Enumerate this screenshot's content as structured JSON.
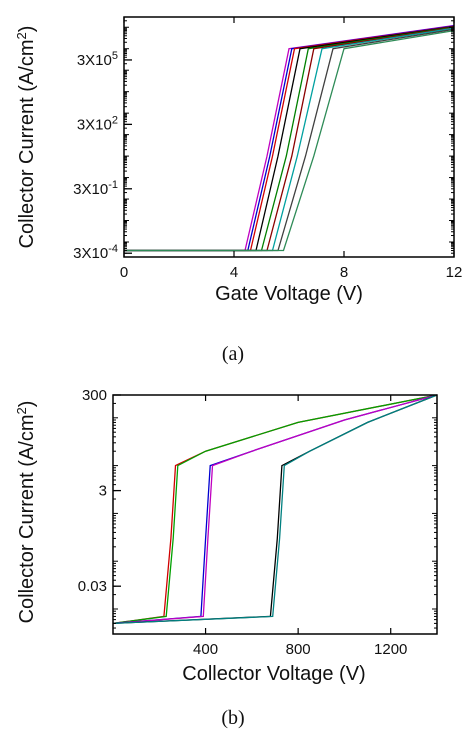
{
  "chart_data": [
    {
      "type": "line",
      "xlabel": "Gate Voltage (V)",
      "ylabel": "Collector Current (A/cm",
      "ylabel_superscript": "2",
      "ylabel_suffix": ")",
      "yscale": "log",
      "xlim": [
        0,
        12
      ],
      "ylim": [
        0.0002,
        30000000
      ],
      "xticks": [
        0,
        4,
        8,
        12
      ],
      "xtick_labels": [
        "0",
        "4",
        "8",
        "12"
      ],
      "yticks": [
        {
          "value": 0.0003,
          "base": "3X10",
          "exp": "-4"
        },
        {
          "value": 0.3,
          "base": "3X10",
          "exp": "-1"
        },
        {
          "value": 300,
          "base": "3X10",
          "exp": "2"
        },
        {
          "value": 300000,
          "base": "3X10",
          "exp": "5"
        }
      ],
      "grid": false,
      "series": [
        {
          "color": "#c000c0",
          "values": [
            {
              "x": 0,
              "y": 0.0004
            },
            {
              "x": 4.4,
              "y": 0.0004
            },
            {
              "x": 5.2,
              "y": 10
            },
            {
              "x": 6.0,
              "y": 1000000
            },
            {
              "x": 12,
              "y": 12000000
            }
          ]
        },
        {
          "color": "#0000d0",
          "values": [
            {
              "x": 0,
              "y": 0.0004
            },
            {
              "x": 4.5,
              "y": 0.0004
            },
            {
              "x": 5.3,
              "y": 10
            },
            {
              "x": 6.1,
              "y": 1000000
            },
            {
              "x": 12,
              "y": 11500000
            }
          ]
        },
        {
          "color": "#d00000",
          "values": [
            {
              "x": 0,
              "y": 0.0004
            },
            {
              "x": 4.6,
              "y": 0.0004
            },
            {
              "x": 5.4,
              "y": 10
            },
            {
              "x": 6.2,
              "y": 1000000
            },
            {
              "x": 12,
              "y": 11000000
            }
          ]
        },
        {
          "color": "#000000",
          "values": [
            {
              "x": 0,
              "y": 0.0004
            },
            {
              "x": 4.8,
              "y": 0.0004
            },
            {
              "x": 5.6,
              "y": 10
            },
            {
              "x": 6.4,
              "y": 1000000
            },
            {
              "x": 12,
              "y": 10500000
            }
          ]
        },
        {
          "color": "#008000",
          "values": [
            {
              "x": 0,
              "y": 0.0004
            },
            {
              "x": 5.0,
              "y": 0.0004
            },
            {
              "x": 5.9,
              "y": 10
            },
            {
              "x": 6.7,
              "y": 1000000
            },
            {
              "x": 12,
              "y": 10000000
            }
          ]
        },
        {
          "color": "#8b0000",
          "values": [
            {
              "x": 0,
              "y": 0.0004
            },
            {
              "x": 5.2,
              "y": 0.0004
            },
            {
              "x": 6.1,
              "y": 10
            },
            {
              "x": 6.9,
              "y": 1000000
            },
            {
              "x": 12,
              "y": 9500000
            }
          ]
        },
        {
          "color": "#00a0a0",
          "values": [
            {
              "x": 0,
              "y": 0.0004
            },
            {
              "x": 5.4,
              "y": 0.0004
            },
            {
              "x": 6.3,
              "y": 10
            },
            {
              "x": 7.2,
              "y": 1000000
            },
            {
              "x": 12,
              "y": 9000000
            }
          ]
        },
        {
          "color": "#404040",
          "values": [
            {
              "x": 0,
              "y": 0.0004
            },
            {
              "x": 5.6,
              "y": 0.0004
            },
            {
              "x": 6.6,
              "y": 10
            },
            {
              "x": 7.6,
              "y": 1000000
            },
            {
              "x": 12,
              "y": 8000000
            }
          ]
        },
        {
          "color": "#2e8b57",
          "values": [
            {
              "x": 0,
              "y": 0.0004
            },
            {
              "x": 5.8,
              "y": 0.0004
            },
            {
              "x": 6.9,
              "y": 10
            },
            {
              "x": 8.0,
              "y": 1000000
            },
            {
              "x": 12,
              "y": 7000000
            }
          ]
        }
      ]
    },
    {
      "type": "line",
      "xlabel": "Collector Voltage (V)",
      "ylabel": "Collector Current (A/cm",
      "ylabel_superscript": "2",
      "ylabel_suffix": ")",
      "yscale": "log",
      "xlim": [
        0,
        1400
      ],
      "ylim": [
        0.003,
        300
      ],
      "xticks": [
        400,
        800,
        1200
      ],
      "xtick_labels": [
        "400",
        "800",
        "1200"
      ],
      "yticks": [
        {
          "value": 300,
          "label": "300"
        },
        {
          "value": 3,
          "label": "3"
        },
        {
          "value": 0.03,
          "label": "0.03"
        }
      ],
      "grid": false,
      "series": [
        {
          "color": "#d00000",
          "values": [
            {
              "x": 0,
              "y": 0.005
            },
            {
              "x": 220,
              "y": 0.007
            },
            {
              "x": 250,
              "y": 0.3
            },
            {
              "x": 270,
              "y": 10
            },
            {
              "x": 400,
              "y": 20
            },
            {
              "x": 800,
              "y": 80
            },
            {
              "x": 1400,
              "y": 300
            }
          ]
        },
        {
          "color": "#00a000",
          "values": [
            {
              "x": 0,
              "y": 0.005
            },
            {
              "x": 230,
              "y": 0.007
            },
            {
              "x": 260,
              "y": 0.3
            },
            {
              "x": 280,
              "y": 10
            },
            {
              "x": 400,
              "y": 20
            },
            {
              "x": 800,
              "y": 80
            },
            {
              "x": 1400,
              "y": 300
            }
          ]
        },
        {
          "color": "#0000d0",
          "values": [
            {
              "x": 0,
              "y": 0.005
            },
            {
              "x": 380,
              "y": 0.007
            },
            {
              "x": 400,
              "y": 0.3
            },
            {
              "x": 420,
              "y": 10
            },
            {
              "x": 600,
              "y": 20
            },
            {
              "x": 1000,
              "y": 90
            },
            {
              "x": 1400,
              "y": 300
            }
          ]
        },
        {
          "color": "#c000c0",
          "values": [
            {
              "x": 0,
              "y": 0.005
            },
            {
              "x": 390,
              "y": 0.007
            },
            {
              "x": 410,
              "y": 0.3
            },
            {
              "x": 430,
              "y": 10
            },
            {
              "x": 600,
              "y": 20
            },
            {
              "x": 1000,
              "y": 90
            },
            {
              "x": 1400,
              "y": 300
            }
          ]
        },
        {
          "color": "#000000",
          "values": [
            {
              "x": 0,
              "y": 0.005
            },
            {
              "x": 680,
              "y": 0.007
            },
            {
              "x": 710,
              "y": 0.3
            },
            {
              "x": 730,
              "y": 10
            },
            {
              "x": 850,
              "y": 20
            },
            {
              "x": 1100,
              "y": 80
            },
            {
              "x": 1400,
              "y": 300
            }
          ]
        },
        {
          "color": "#008080",
          "values": [
            {
              "x": 0,
              "y": 0.005
            },
            {
              "x": 690,
              "y": 0.007
            },
            {
              "x": 720,
              "y": 0.3
            },
            {
              "x": 740,
              "y": 10
            },
            {
              "x": 850,
              "y": 20
            },
            {
              "x": 1100,
              "y": 80
            },
            {
              "x": 1400,
              "y": 300
            }
          ]
        }
      ]
    }
  ],
  "captions": [
    "(a)",
    "(b)"
  ]
}
